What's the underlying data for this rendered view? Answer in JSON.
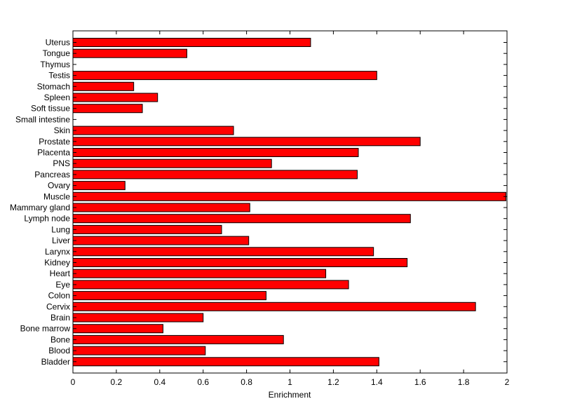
{
  "chart_data": {
    "type": "bar",
    "orientation": "horizontal",
    "title": "",
    "xlabel": "Enrichment",
    "ylabel": "",
    "xlim": [
      0,
      2
    ],
    "xticks": [
      "0",
      "0.2",
      "0.4",
      "0.6",
      "0.8",
      "1",
      "1.2",
      "1.4",
      "1.6",
      "1.8",
      "2"
    ],
    "grid": false,
    "legend": "none",
    "bar_color": "#ff0000",
    "categories": [
      "Uterus",
      "Tongue",
      "Thymus",
      "Testis",
      "Stomach",
      "Spleen",
      "Soft tissue",
      "Small intestine",
      "Skin",
      "Prostate",
      "Placenta",
      "PNS",
      "Pancreas",
      "Ovary",
      "Muscle",
      "Mammary gland",
      "Lymph node",
      "Lung",
      "Liver",
      "Larynx",
      "Kidney",
      "Heart",
      "Eye",
      "Colon",
      "Cervix",
      "Brain",
      "Bone marrow",
      "Bone",
      "Blood",
      "Bladder"
    ],
    "values": [
      1.095,
      0.525,
      0,
      1.4,
      0.28,
      0.39,
      0.32,
      0,
      0.74,
      1.6,
      1.315,
      0.915,
      1.31,
      0.24,
      1.995,
      0.815,
      1.555,
      0.685,
      0.81,
      1.385,
      1.54,
      1.165,
      1.27,
      0.89,
      1.855,
      0.6,
      0.415,
      0.97,
      0.61,
      1.41
    ]
  }
}
